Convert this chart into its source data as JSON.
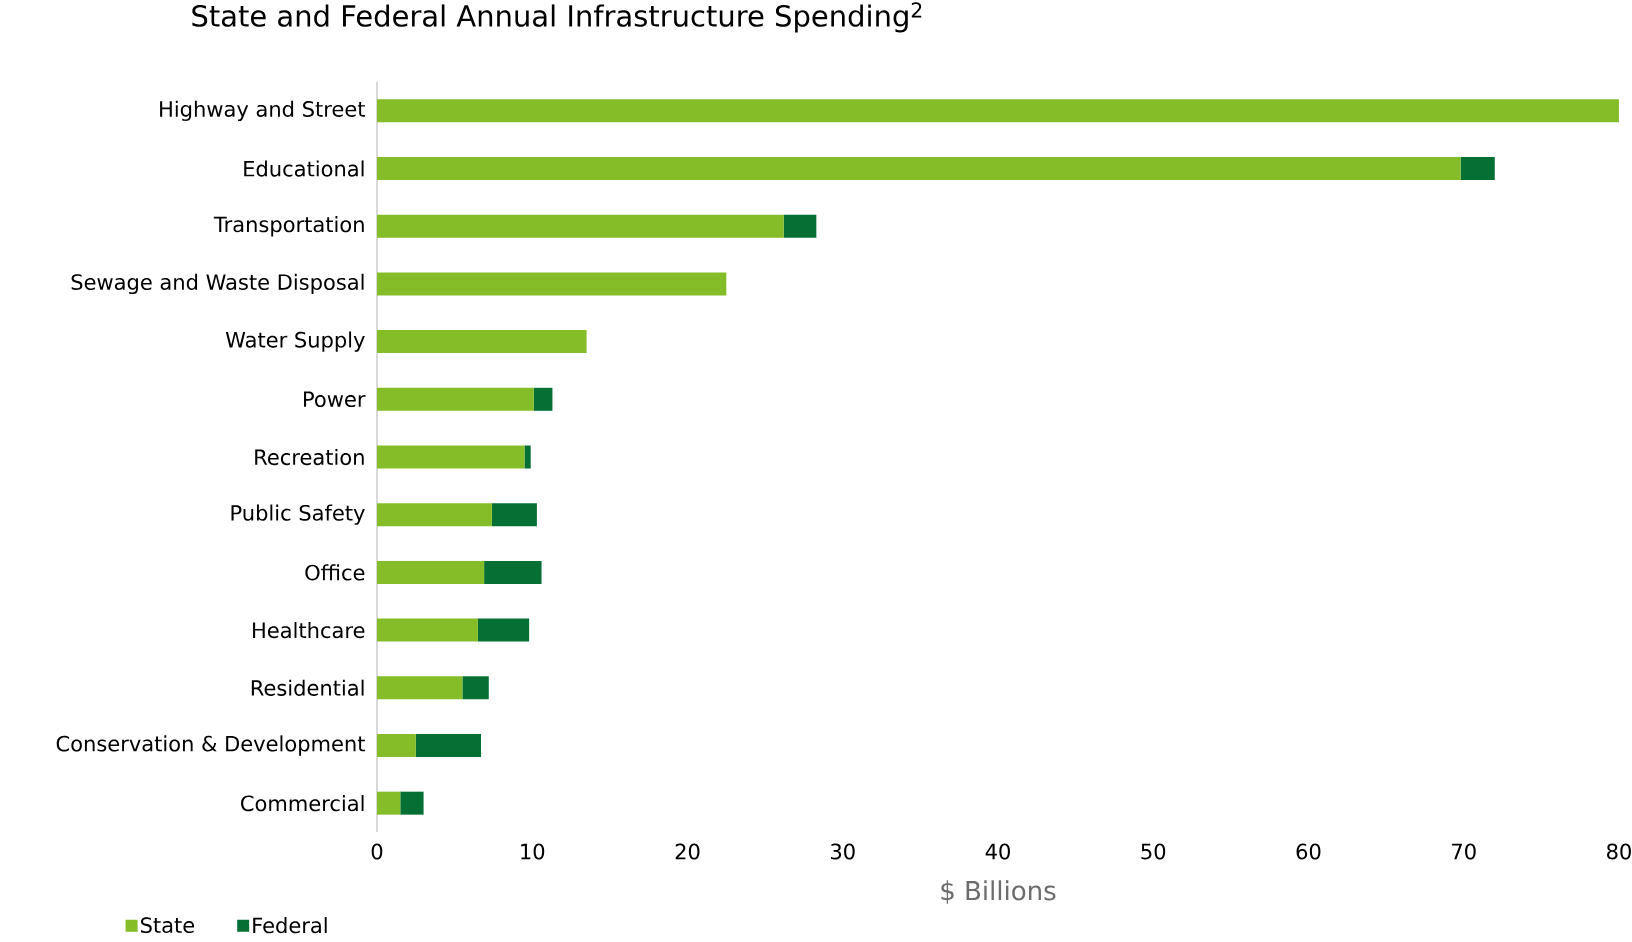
{
  "chart_data": {
    "type": "bar",
    "orientation": "horizontal",
    "stacked": true,
    "title": "State and Federal Annual Infrastructure Spending$^{2}$",
    "xlabel": "$ Billions",
    "categories": [
      "Highway and Street",
      "Educational",
      "Transportation",
      "Sewage and Waste Disposal",
      "Water Supply",
      "Power",
      "Recreation",
      "Public Safety",
      "Office",
      "Healthcare",
      "Residential",
      "Conservation & Development",
      "Commercial"
    ],
    "series": [
      {
        "name": "State",
        "color": "#84bd27",
        "values": [
          80,
          69.8,
          26.2,
          22.5,
          13.5,
          10.1,
          9.5,
          7.4,
          6.9,
          6.5,
          5.5,
          2.5,
          1.5
        ]
      },
      {
        "name": "Federal",
        "color": "#067034",
        "values": [
          null,
          2.2,
          2.1,
          null,
          null,
          1.2,
          0.4,
          2.9,
          3.7,
          3.3,
          1.7,
          4.2,
          1.5
        ]
      }
    ],
    "xlim": [
      0,
      80
    ],
    "xticks": [
      0,
      10,
      20,
      30,
      40,
      50,
      60,
      70,
      80
    ],
    "grid": false,
    "legend": "bottom left"
  }
}
